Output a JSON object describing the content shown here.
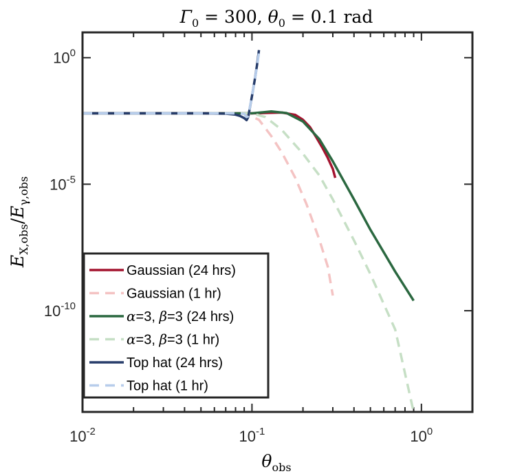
{
  "chart_data": {
    "type": "line",
    "title": "Γ0 = 300, θ0 = 0.1 rad",
    "title_parts": {
      "gamma": "Γ",
      "gamma_sub": "0",
      "gamma_val": " = 300, ",
      "theta": "θ",
      "theta_sub": "0",
      "theta_val": " = 0.1 rad"
    },
    "xlabel": "θobs",
    "xlabel_parts": {
      "main": "θ",
      "sub": "obs"
    },
    "ylabel": "E_X,obs / E_γ,obs",
    "ylabel_parts": {
      "e1": "E",
      "s1": "X,obs",
      "slash": "/",
      "e2": "E",
      "s2": "γ,obs"
    },
    "xscale": "log",
    "yscale": "log",
    "xlim": [
      0.01,
      2
    ],
    "ylim": [
      1e-14,
      10
    ],
    "x_ticks": [
      {
        "value": 0.01,
        "base": "10",
        "exp": "-2"
      },
      {
        "value": 0.1,
        "base": "10",
        "exp": "-1"
      },
      {
        "value": 1,
        "base": "10",
        "exp": "0"
      }
    ],
    "y_ticks": [
      {
        "value": 1e-10,
        "base": "10",
        "exp": "-10"
      },
      {
        "value": 1e-05,
        "base": "10",
        "exp": "-5"
      },
      {
        "value": 1,
        "base": "10",
        "exp": "0"
      }
    ],
    "legend_position": "bottom-left",
    "series": [
      {
        "name": "Gaussian (24 hrs)",
        "label_parts": [
          "Gaussian (24 hrs)"
        ],
        "color": "#a3142f",
        "style": "solid",
        "x": [
          0.01,
          0.05,
          0.1,
          0.15,
          0.18,
          0.2,
          0.22,
          0.24,
          0.26,
          0.28,
          0.3,
          0.31
        ],
        "y": [
          0.00631,
          0.00631,
          0.00631,
          0.00676,
          0.0055,
          0.0035,
          0.0018,
          0.0007,
          0.00028,
          0.00011,
          4e-05,
          1.78e-05
        ]
      },
      {
        "name": "Gaussian (1 hr)",
        "label_parts": [
          "Gaussian (1 hr)"
        ],
        "color": "#f4c3c3",
        "style": "dashed",
        "x": [
          0.01,
          0.05,
          0.09,
          0.11,
          0.13,
          0.15,
          0.18,
          0.21,
          0.25,
          0.28,
          0.3
        ],
        "y": [
          0.00631,
          0.00631,
          0.0063,
          0.0035,
          0.0008,
          0.00018,
          1.8e-05,
          1.6e-06,
          6.31e-08,
          5.62e-09,
          3.98e-10
        ]
      },
      {
        "name": "α=3, β=3 (24 hrs)",
        "label_parts": [
          "α",
          "=3, ",
          "β",
          "=3 (24 hrs)"
        ],
        "color": "#2b6840",
        "style": "solid",
        "x": [
          0.01,
          0.05,
          0.1,
          0.13,
          0.16,
          0.2,
          0.25,
          0.3,
          0.4,
          0.5,
          0.7,
          0.9
        ],
        "y": [
          0.00631,
          0.00631,
          0.00631,
          0.0075,
          0.0065,
          0.003,
          0.0006,
          8e-05,
          2.5e-06,
          1.6e-07,
          3.5e-09,
          2.51e-10
        ]
      },
      {
        "name": "α=3, β=3 (1 hr)",
        "label_parts": [
          "α",
          "=3, ",
          "β",
          "=3 (1 hr)"
        ],
        "color": "#c6dfc5",
        "style": "dashed",
        "x": [
          0.01,
          0.05,
          0.1,
          0.12,
          0.15,
          0.2,
          0.25,
          0.3,
          0.4,
          0.5,
          0.7,
          0.9
        ],
        "y": [
          0.00631,
          0.00631,
          0.00631,
          0.0045,
          0.0014,
          0.00016,
          2.2e-05,
          2.5e-06,
          6e-08,
          2.8e-09,
          1.8e-11,
          1e-14
        ]
      },
      {
        "name": "Top hat (24 hrs)",
        "label_parts": [
          "Top hat (24 hrs)"
        ],
        "color": "#263c6a",
        "style": "solid",
        "x": [
          0.01,
          0.05,
          0.07,
          0.08,
          0.085,
          0.09,
          0.093,
          0.095,
          0.1,
          0.104,
          0.107,
          0.11
        ],
        "y": [
          0.00631,
          0.00631,
          0.00612,
          0.0056,
          0.005,
          0.0041,
          0.0034,
          0.0045,
          0.03,
          0.14,
          0.5,
          2.0
        ]
      },
      {
        "name": "Top hat (1 hr)",
        "label_parts": [
          "Top hat (1 hr)"
        ],
        "color": "#b7cdeb",
        "style": "dashed",
        "x": [
          0.01,
          0.05,
          0.07,
          0.08,
          0.09,
          0.093,
          0.095,
          0.1,
          0.104,
          0.107,
          0.11
        ],
        "y": [
          0.00631,
          0.00631,
          0.00631,
          0.0063,
          0.006,
          0.0045,
          0.0048,
          0.03,
          0.14,
          0.45,
          1.6
        ]
      }
    ]
  }
}
